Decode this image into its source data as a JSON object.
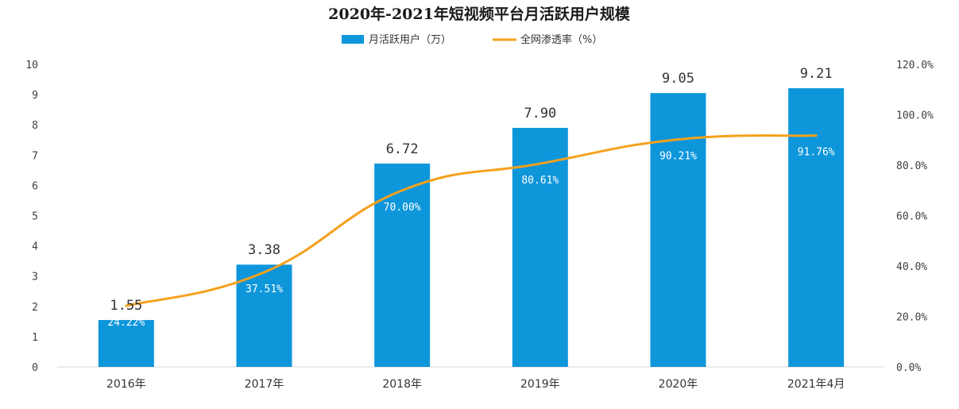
{
  "chart_data": {
    "type": "bar",
    "title": "2020年-2021年短视频平台月活跃用户规模",
    "categories": [
      "2016年",
      "2017年",
      "2018年",
      "2019年",
      "2020年",
      "2021年4月"
    ],
    "series": [
      {
        "name": "月活跃用户（万）",
        "type": "bar",
        "axis": "left",
        "values": [
          1.55,
          3.38,
          6.72,
          7.9,
          9.05,
          9.21
        ],
        "labels": [
          "1.55",
          "3.38",
          "6.72",
          "7.90",
          "9.05",
          "9.21"
        ],
        "color": "#0e96db"
      },
      {
        "name": "全网渗透率（%）",
        "type": "line",
        "axis": "right",
        "values": [
          24.22,
          37.51,
          70.0,
          80.61,
          90.21,
          91.76
        ],
        "labels": [
          "24.22%",
          "37.51%",
          "70.00%",
          "80.61%",
          "90.21%",
          "91.76%"
        ],
        "color": "#f5a11b"
      }
    ],
    "y_left": {
      "min": 0,
      "max": 10,
      "ticks": [
        "0",
        "1",
        "2",
        "3",
        "4",
        "5",
        "6",
        "7",
        "8",
        "9",
        "10"
      ]
    },
    "y_right": {
      "min": 0,
      "max": 120,
      "ticks": [
        "0.0%",
        "20.0%",
        "40.0%",
        "60.0%",
        "80.0%",
        "100.0%",
        "120.0%"
      ]
    },
    "grid": false,
    "legend_position": "top"
  }
}
